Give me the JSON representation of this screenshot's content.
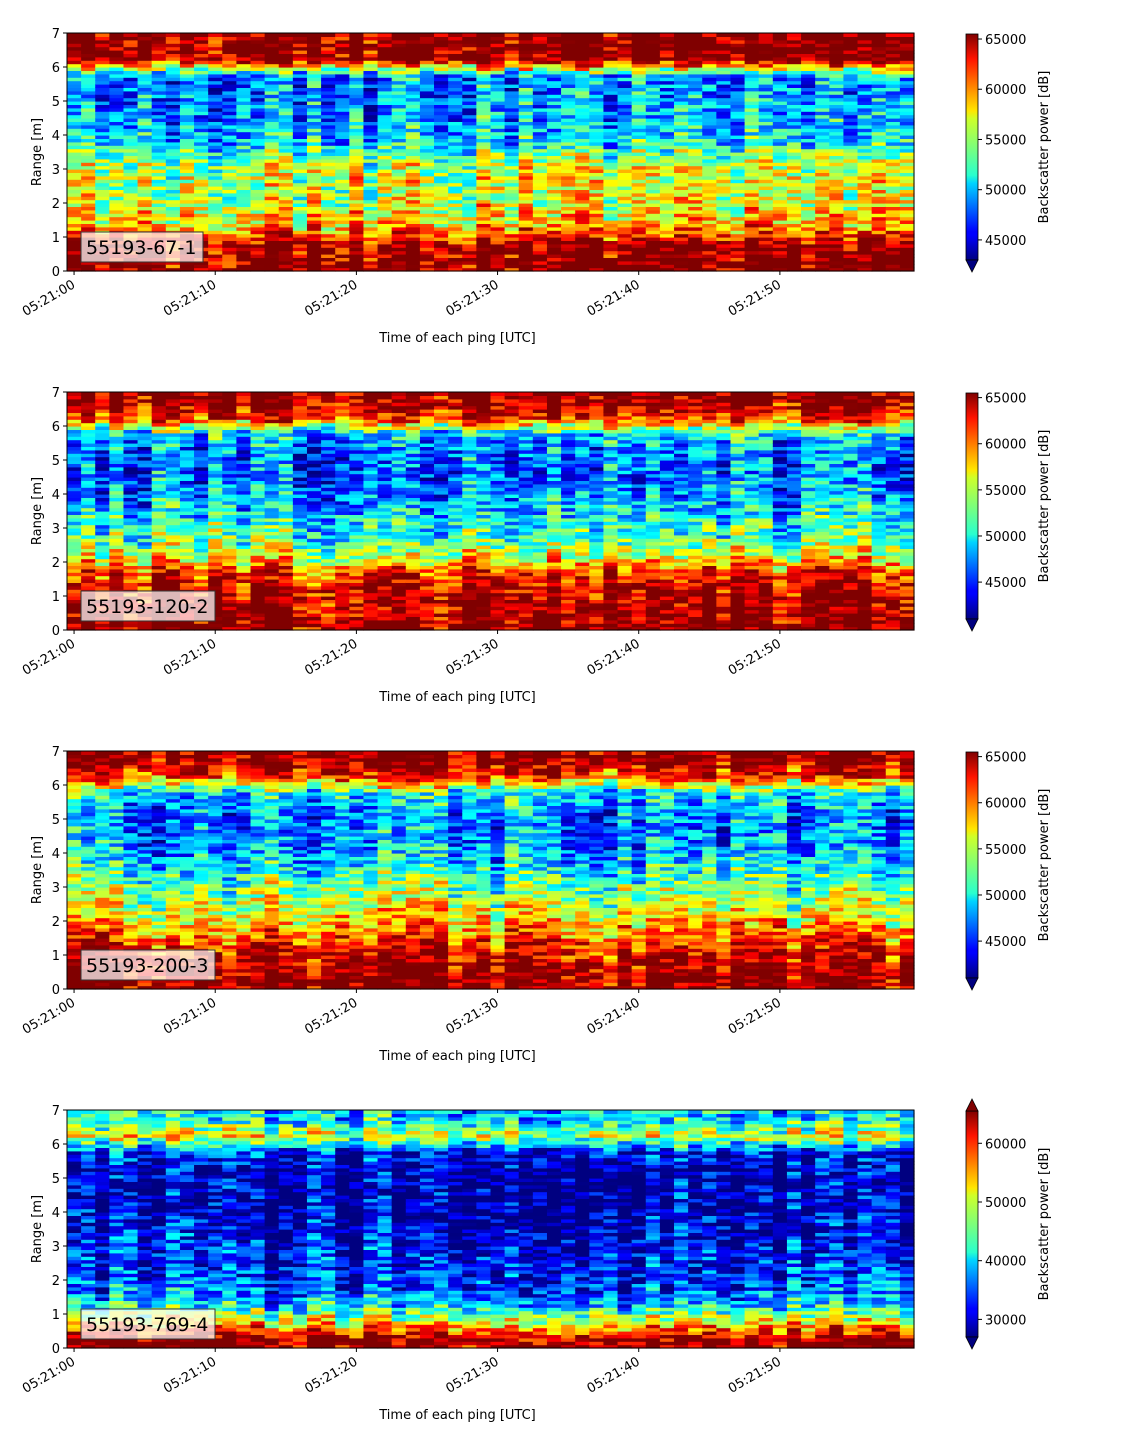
{
  "chart_data": [
    {
      "type": "heatmap",
      "id": "55193-67-1",
      "label": "55193-67-1",
      "xlabel": "Time of each ping [UTC]",
      "ylabel": "Range [m]",
      "x_ticks": [
        "05:21:00",
        "05:21:10",
        "05:21:20",
        "05:21:30",
        "05:21:40",
        "05:21:50"
      ],
      "x_range_seconds": [
        -0.5,
        59.5
      ],
      "y_ticks": [
        0,
        1,
        2,
        3,
        4,
        5,
        6,
        7
      ],
      "ylim": [
        0,
        7
      ],
      "colorbar_label": "Backscatter power [dB]",
      "colorbar_ticks": [
        45000,
        50000,
        55000,
        60000,
        65000
      ],
      "vmin": 43000,
      "vmax": 65500,
      "colorbar_extend": "min",
      "colormap": "jet",
      "ping_interval_s": 1,
      "range_profile_m": [
        0.25,
        0.75,
        1.25,
        1.75,
        2.25,
        2.75,
        3.25,
        3.75,
        4.25,
        4.75,
        5.25,
        5.75,
        6.25,
        6.75
      ],
      "typical_values": [
        65500,
        65000,
        59000,
        57000,
        55500,
        56000,
        55000,
        51000,
        49500,
        49000,
        48500,
        49000,
        65500,
        65500
      ]
    },
    {
      "type": "heatmap",
      "id": "55193-120-2",
      "label": "55193-120-2",
      "xlabel": "Time of each ping [UTC]",
      "ylabel": "Range [m]",
      "x_ticks": [
        "05:21:00",
        "05:21:10",
        "05:21:20",
        "05:21:30",
        "05:21:40",
        "05:21:50"
      ],
      "x_range_seconds": [
        -0.5,
        59.5
      ],
      "y_ticks": [
        0,
        1,
        2,
        3,
        4,
        5,
        6,
        7
      ],
      "ylim": [
        0,
        7
      ],
      "colorbar_label": "Backscatter power [dB]",
      "colorbar_ticks": [
        45000,
        50000,
        55000,
        60000,
        65000
      ],
      "vmin": 41000,
      "vmax": 65500,
      "colorbar_extend": "min",
      "colormap": "jet",
      "ping_interval_s": 1,
      "range_profile_m": [
        0.25,
        0.75,
        1.25,
        1.75,
        2.25,
        2.75,
        3.25,
        3.75,
        4.25,
        4.75,
        5.25,
        5.75,
        6.25,
        6.75
      ],
      "typical_values": [
        65500,
        65000,
        64000,
        61000,
        55000,
        52000,
        50500,
        48500,
        47000,
        46500,
        47000,
        49000,
        62000,
        65500
      ]
    },
    {
      "type": "heatmap",
      "id": "55193-200-3",
      "label": "55193-200-3",
      "xlabel": "Time of each ping [UTC]",
      "ylabel": "Range [m]",
      "x_ticks": [
        "05:21:00",
        "05:21:10",
        "05:21:20",
        "05:21:30",
        "05:21:40",
        "05:21:50"
      ],
      "x_range_seconds": [
        -0.5,
        59.5
      ],
      "y_ticks": [
        0,
        1,
        2,
        3,
        4,
        5,
        6,
        7
      ],
      "ylim": [
        0,
        7
      ],
      "colorbar_label": "Backscatter power [dB]",
      "colorbar_ticks": [
        45000,
        50000,
        55000,
        60000,
        65000
      ],
      "vmin": 41000,
      "vmax": 65500,
      "colorbar_extend": "min",
      "colormap": "jet",
      "ping_interval_s": 1,
      "range_profile_m": [
        0.25,
        0.75,
        1.25,
        1.75,
        2.25,
        2.75,
        3.25,
        3.75,
        4.25,
        4.75,
        5.25,
        5.75,
        6.25,
        6.75
      ],
      "typical_values": [
        65500,
        64500,
        62000,
        59000,
        56000,
        54000,
        52000,
        49000,
        47500,
        47000,
        47500,
        49500,
        61000,
        65500
      ]
    },
    {
      "type": "heatmap",
      "id": "55193-769-4",
      "label": "55193-769-4",
      "xlabel": "Time of each ping [UTC]",
      "ylabel": "Range [m]",
      "x_ticks": [
        "05:21:00",
        "05:21:10",
        "05:21:20",
        "05:21:30",
        "05:21:40",
        "05:21:50"
      ],
      "x_range_seconds": [
        -0.5,
        59.5
      ],
      "y_ticks": [
        0,
        1,
        2,
        3,
        4,
        5,
        6,
        7
      ],
      "ylim": [
        0,
        7
      ],
      "colorbar_label": "Backscatter power [dB]",
      "colorbar_ticks": [
        30000,
        40000,
        50000,
        60000
      ],
      "vmin": 27000,
      "vmax": 65500,
      "colorbar_extend": "both",
      "colormap": "jet",
      "ping_interval_s": 1,
      "range_profile_m": [
        0.25,
        0.75,
        1.25,
        1.75,
        2.25,
        2.75,
        3.25,
        3.75,
        4.25,
        4.75,
        5.25,
        5.75,
        6.25,
        6.75
      ],
      "typical_values": [
        65500,
        52000,
        40000,
        35000,
        33000,
        32000,
        31000,
        30000,
        29500,
        29000,
        29000,
        32000,
        50000,
        40000
      ]
    }
  ]
}
